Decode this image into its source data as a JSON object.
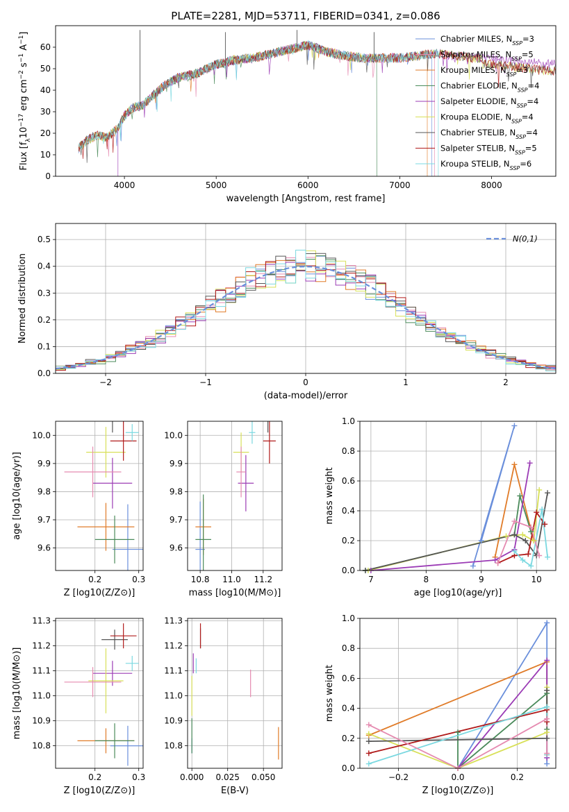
{
  "figure": {
    "title": "PLATE=2281, MJD=53711, FIBERID=0341, z=0.086"
  },
  "colors": [
    "#6a8fdb",
    "#e07b28",
    "#4a8a5a",
    "#9b3bb5",
    "#d8e058",
    "#555555",
    "#b01a1a",
    "#7ad8e0",
    "#e58ab0"
  ],
  "models": [
    {
      "label": "Chabrier MILES, N_SSP=3",
      "color": "#6a8fdb"
    },
    {
      "label": "Salpeter MILES, N_SSP=5",
      "color": "#e58ab0"
    },
    {
      "label": "Kroupa MILES, N_SSP=3",
      "color": "#e07b28"
    },
    {
      "label": "Chabrier ELODIE, N_SSP=4",
      "color": "#4a8a5a"
    },
    {
      "label": "Salpeter ELODIE, N_SSP=4",
      "color": "#9b3bb5"
    },
    {
      "label": "Kroupa ELODIE, N_SSP=4",
      "color": "#d8e058"
    },
    {
      "label": "Chabrier STELIB, N_SSP=4",
      "color": "#555555"
    },
    {
      "label": "Salpeter STELIB, N_SSP=5",
      "color": "#b01a1a"
    },
    {
      "label": "Kroupa STELIB, N_SSP=6",
      "color": "#7ad8e0"
    }
  ],
  "chart_data": [
    {
      "id": "spectrum",
      "type": "line",
      "xlabel": "wavelength [Angstrom, rest frame]",
      "ylabel": "Flux [f_λ 10^-17 erg cm^-2 s^-1 A^-1]",
      "xlim": [
        3250,
        8700
      ],
      "ylim": [
        0,
        70
      ],
      "xticks": [
        4000,
        5000,
        6000,
        7000,
        8000
      ],
      "yticks": [
        0,
        10,
        20,
        30,
        40,
        50,
        60
      ],
      "grid": false,
      "legend": "top-right",
      "continuum": {
        "x": [
          3500,
          3600,
          3700,
          3800,
          3900,
          4000,
          4100,
          4200,
          4300,
          4400,
          4500,
          4600,
          4700,
          4800,
          5000,
          5200,
          5400,
          5600,
          5800,
          6000,
          6200,
          6400,
          6600,
          6800,
          7000,
          7200,
          7400,
          7600,
          7800,
          8000,
          8200,
          8400,
          8600
        ],
        "y": [
          13,
          17,
          19,
          18,
          21,
          28,
          32,
          33,
          37,
          41,
          44,
          46,
          47,
          48,
          52,
          54,
          55,
          57,
          59,
          61,
          58,
          56,
          55,
          55,
          55,
          56,
          57,
          56,
          55,
          55,
          54,
          53,
          52
        ]
      },
      "features": [
        {
          "x": 5100,
          "y": 67
        },
        {
          "x": 5880,
          "y": 68
        },
        {
          "x": 6720,
          "y": 67
        },
        {
          "x": 4170,
          "y": 68
        }
      ]
    },
    {
      "id": "residuals",
      "type": "histogram",
      "xlabel": "(data-model)/error",
      "ylabel": "Normed distribution",
      "xlim": [
        -2.5,
        2.5
      ],
      "ylim": [
        0,
        0.56
      ],
      "xticks": [
        -2,
        -1,
        0,
        1,
        2
      ],
      "yticks": [
        0.0,
        0.1,
        0.2,
        0.3,
        0.4,
        0.5
      ],
      "grid": true,
      "legend": "top-right",
      "reference_label": "N(0,1)",
      "reference_color": "#6a8fdb"
    },
    {
      "id": "age-vs-Z",
      "type": "errorbar",
      "xlabel": "Z [log10(Z/Z⊙)]",
      "ylabel": "age [log10(age/yr)]",
      "xlim": [
        0.11,
        0.31
      ],
      "ylim": [
        9.52,
        10.05
      ],
      "xticks": [
        0.2,
        0.3
      ],
      "yticks": [
        9.6,
        9.7,
        9.8,
        9.9,
        10.0
      ],
      "grid": true,
      "points": [
        {
          "x": 0.275,
          "y": 9.595,
          "xerr": 0.035,
          "yerr": 0.16,
          "color": "#6a8fdb"
        },
        {
          "x": 0.225,
          "y": 9.675,
          "xerr": 0.065,
          "yerr": 0.085,
          "color": "#e07b28"
        },
        {
          "x": 0.245,
          "y": 9.63,
          "xerr": 0.045,
          "yerr": 0.085,
          "color": "#4a8a5a"
        },
        {
          "x": 0.24,
          "y": 9.83,
          "xerr": 0.045,
          "yerr": 0.09,
          "color": "#9b3bb5"
        },
        {
          "x": 0.225,
          "y": 9.94,
          "xerr": 0.045,
          "yerr": 0.09,
          "color": "#d8e058"
        },
        {
          "x": 0.24,
          "y": 10.06,
          "xerr": 0.03,
          "yerr": 0.05,
          "color": "#555555"
        },
        {
          "x": 0.265,
          "y": 9.98,
          "xerr": 0.03,
          "yerr": 0.07,
          "color": "#b01a1a"
        },
        {
          "x": 0.285,
          "y": 10.01,
          "xerr": 0.015,
          "yerr": 0.03,
          "color": "#7ad8e0"
        },
        {
          "x": 0.195,
          "y": 9.87,
          "xerr": 0.065,
          "yerr": 0.09,
          "color": "#e58ab0"
        }
      ]
    },
    {
      "id": "age-vs-mass",
      "type": "errorbar",
      "xlabel": "mass [log10(M/M⊙)]",
      "ylabel": "",
      "xlim": [
        10.72,
        11.32
      ],
      "ylim": [
        9.52,
        10.05
      ],
      "xticks": [
        10.8,
        11.0,
        11.2
      ],
      "yticks": [
        9.6,
        9.7,
        9.8,
        9.9,
        10.0
      ],
      "grid": true,
      "points": [
        {
          "x": 10.8,
          "y": 9.595,
          "xerr": 0.03,
          "yerr": 0.17,
          "color": "#6a8fdb"
        },
        {
          "x": 10.82,
          "y": 9.675,
          "xerr": 0.05,
          "yerr": 0.1,
          "color": "#e07b28"
        },
        {
          "x": 10.82,
          "y": 9.63,
          "xerr": 0.05,
          "yerr": 0.16,
          "color": "#4a8a5a"
        },
        {
          "x": 11.09,
          "y": 9.83,
          "xerr": 0.05,
          "yerr": 0.1,
          "color": "#9b3bb5"
        },
        {
          "x": 11.06,
          "y": 9.94,
          "xerr": 0.05,
          "yerr": 0.07,
          "color": "#d8e058"
        },
        {
          "x": 11.23,
          "y": 10.06,
          "xerr": 0.03,
          "yerr": 0.05,
          "color": "#555555"
        },
        {
          "x": 11.24,
          "y": 9.98,
          "xerr": 0.04,
          "yerr": 0.08,
          "color": "#b01a1a"
        },
        {
          "x": 11.13,
          "y": 10.01,
          "xerr": 0.02,
          "yerr": 0.04,
          "color": "#7ad8e0"
        },
        {
          "x": 11.06,
          "y": 9.87,
          "xerr": 0.03,
          "yerr": 0.09,
          "color": "#e58ab0"
        }
      ]
    },
    {
      "id": "mass-weight-vs-age",
      "type": "line",
      "xlabel": "age [log10(age/yr)]",
      "ylabel": "mass weight",
      "xlim": [
        6.8,
        10.35
      ],
      "ylim": [
        0,
        1.0
      ],
      "xticks": [
        7,
        8,
        9,
        10
      ],
      "yticks": [
        0.0,
        0.2,
        0.4,
        0.6,
        0.8,
        1.0
      ],
      "grid": true,
      "series": [
        {
          "color": "#6a8fdb",
          "x": [
            8.85,
            9.6,
            9.0
          ],
          "y": [
            0.03,
            0.97,
            0.2
          ]
        },
        {
          "color": "#e07b28",
          "x": [
            9.25,
            9.6,
            9.95
          ],
          "y": [
            0.09,
            0.71,
            0.2
          ]
        },
        {
          "color": "#4a8a5a",
          "x": [
            6.9,
            9.6,
            9.7,
            9.9
          ],
          "y": [
            0.0,
            0.24,
            0.5,
            0.26
          ]
        },
        {
          "color": "#9b3bb5",
          "x": [
            7.0,
            9.25,
            9.6,
            9.88
          ],
          "y": [
            0.0,
            0.07,
            0.14,
            0.72
          ]
        },
        {
          "color": "#d8e058",
          "x": [
            6.95,
            9.45,
            9.75,
            9.95,
            10.05
          ],
          "y": [
            0.0,
            0.23,
            0.24,
            0.2,
            0.54
          ]
        },
        {
          "color": "#555555",
          "x": [
            6.9,
            9.6,
            9.8,
            10.0,
            10.2
          ],
          "y": [
            0.0,
            0.24,
            0.2,
            0.1,
            0.52
          ]
        },
        {
          "color": "#b01a1a",
          "x": [
            9.3,
            9.6,
            9.85,
            10.0,
            10.15
          ],
          "y": [
            0.05,
            0.1,
            0.11,
            0.39,
            0.31
          ]
        },
        {
          "color": "#7ad8e0",
          "x": [
            9.6,
            9.75,
            9.9,
            10.1,
            10.2
          ],
          "y": [
            0.13,
            0.07,
            0.03,
            0.41,
            0.09
          ]
        },
        {
          "color": "#e58ab0",
          "x": [
            9.3,
            9.6,
            9.9,
            10.05
          ],
          "y": [
            0.05,
            0.33,
            0.29,
            0.1
          ]
        }
      ]
    },
    {
      "id": "mass-vs-Z",
      "type": "errorbar",
      "xlabel": "Z [log10(Z/Z⊙)]",
      "ylabel": "mass [log10(M/M⊙)]",
      "xlim": [
        0.11,
        0.31
      ],
      "ylim": [
        10.71,
        11.31
      ],
      "xticks": [
        0.2,
        0.3
      ],
      "yticks": [
        10.8,
        10.9,
        11.0,
        11.1,
        11.2,
        11.3
      ],
      "grid": true,
      "points": [
        {
          "x": 0.275,
          "y": 10.8,
          "xerr": 0.04,
          "yerr": 0.08,
          "color": "#6a8fdb"
        },
        {
          "x": 0.225,
          "y": 10.82,
          "xerr": 0.065,
          "yerr": 0.05,
          "color": "#e07b28"
        },
        {
          "x": 0.245,
          "y": 10.82,
          "xerr": 0.045,
          "yerr": 0.07,
          "color": "#4a8a5a"
        },
        {
          "x": 0.24,
          "y": 11.09,
          "xerr": 0.045,
          "yerr": 0.05,
          "color": "#9b3bb5"
        },
        {
          "x": 0.225,
          "y": 11.06,
          "xerr": 0.04,
          "yerr": 0.13,
          "color": "#d8e058"
        },
        {
          "x": 0.245,
          "y": 11.225,
          "xerr": 0.03,
          "yerr": 0.04,
          "color": "#555555"
        },
        {
          "x": 0.265,
          "y": 11.24,
          "xerr": 0.03,
          "yerr": 0.05,
          "color": "#b01a1a"
        },
        {
          "x": 0.285,
          "y": 11.13,
          "xerr": 0.015,
          "yerr": 0.03,
          "color": "#7ad8e0"
        },
        {
          "x": 0.195,
          "y": 11.055,
          "xerr": 0.065,
          "yerr": 0.06,
          "color": "#e58ab0"
        }
      ]
    },
    {
      "id": "mass-vs-EBV",
      "type": "errorbar",
      "xlabel": "E(B-V)",
      "ylabel": "",
      "xlim": [
        -0.003,
        0.063
      ],
      "ylim": [
        10.71,
        11.31
      ],
      "xticks": [
        0.0,
        0.025,
        0.05
      ],
      "yticks": [
        10.8,
        10.9,
        11.0,
        11.1,
        11.2,
        11.3
      ],
      "grid": true,
      "points": [
        {
          "x": 0.0,
          "y": 10.8,
          "xerr": 0,
          "yerr": 0.03,
          "color": "#6a8fdb"
        },
        {
          "x": 0.0605,
          "y": 10.81,
          "xerr": 0,
          "yerr": 0.065,
          "color": "#e07b28"
        },
        {
          "x": 0.0,
          "y": 10.84,
          "xerr": 0,
          "yerr": 0.07,
          "color": "#4a8a5a"
        },
        {
          "x": 0.001,
          "y": 11.13,
          "xerr": 0,
          "yerr": 0.04,
          "color": "#9b3bb5"
        },
        {
          "x": 0.0,
          "y": 11.0,
          "xerr": 0,
          "yerr": 0.08,
          "color": "#d8e058"
        },
        {
          "x": 0.006,
          "y": 11.23,
          "xerr": 0,
          "yerr": 0.04,
          "color": "#555555"
        },
        {
          "x": 0.006,
          "y": 11.24,
          "xerr": 0,
          "yerr": 0.05,
          "color": "#b01a1a"
        },
        {
          "x": 0.003,
          "y": 11.12,
          "xerr": 0,
          "yerr": 0.03,
          "color": "#7ad8e0"
        },
        {
          "x": 0.041,
          "y": 11.05,
          "xerr": 0,
          "yerr": 0.055,
          "color": "#e58ab0"
        }
      ]
    },
    {
      "id": "mass-weight-vs-Z",
      "type": "line",
      "xlabel": "Z [log10(Z/Z⊙)]",
      "ylabel": "mass weight",
      "xlim": [
        -0.33,
        0.33
      ],
      "ylim": [
        0,
        1.0
      ],
      "xticks": [
        -0.2,
        0.0,
        0.2
      ],
      "yticks": [
        0.0,
        0.2,
        0.4,
        0.6,
        0.8,
        1.0
      ],
      "grid": true,
      "series": [
        {
          "color": "#6a8fdb",
          "x": [
            0.0,
            0.3,
            0.3
          ],
          "y": [
            0.0,
            0.97,
            0.03
          ]
        },
        {
          "color": "#e07b28",
          "x": [
            -0.3,
            0.3,
            0.3
          ],
          "y": [
            0.22,
            0.71,
            0.09
          ]
        },
        {
          "color": "#4a8a5a",
          "x": [
            0.0,
            0.0,
            0.3,
            0.3
          ],
          "y": [
            0.24,
            0.0,
            0.5,
            0.26
          ]
        },
        {
          "color": "#9b3bb5",
          "x": [
            0.0,
            0.3,
            0.3
          ],
          "y": [
            0.0,
            0.72,
            0.07
          ]
        },
        {
          "color": "#d8e058",
          "x": [
            -0.3,
            0.0,
            0.3,
            0.3
          ],
          "y": [
            0.23,
            0.0,
            0.24,
            0.54
          ]
        },
        {
          "color": "#555555",
          "x": [
            -0.3,
            0.3,
            0.3
          ],
          "y": [
            0.18,
            0.2,
            0.52
          ]
        },
        {
          "color": "#b01a1a",
          "x": [
            -0.3,
            0.3,
            0.3
          ],
          "y": [
            0.1,
            0.39,
            0.31
          ]
        },
        {
          "color": "#7ad8e0",
          "x": [
            -0.3,
            0.3,
            0.3
          ],
          "y": [
            0.03,
            0.41,
            0.09
          ]
        },
        {
          "color": "#e58ab0",
          "x": [
            -0.3,
            0.0,
            0.3,
            0.3
          ],
          "y": [
            0.29,
            0.0,
            0.33,
            0.1
          ]
        }
      ]
    }
  ]
}
